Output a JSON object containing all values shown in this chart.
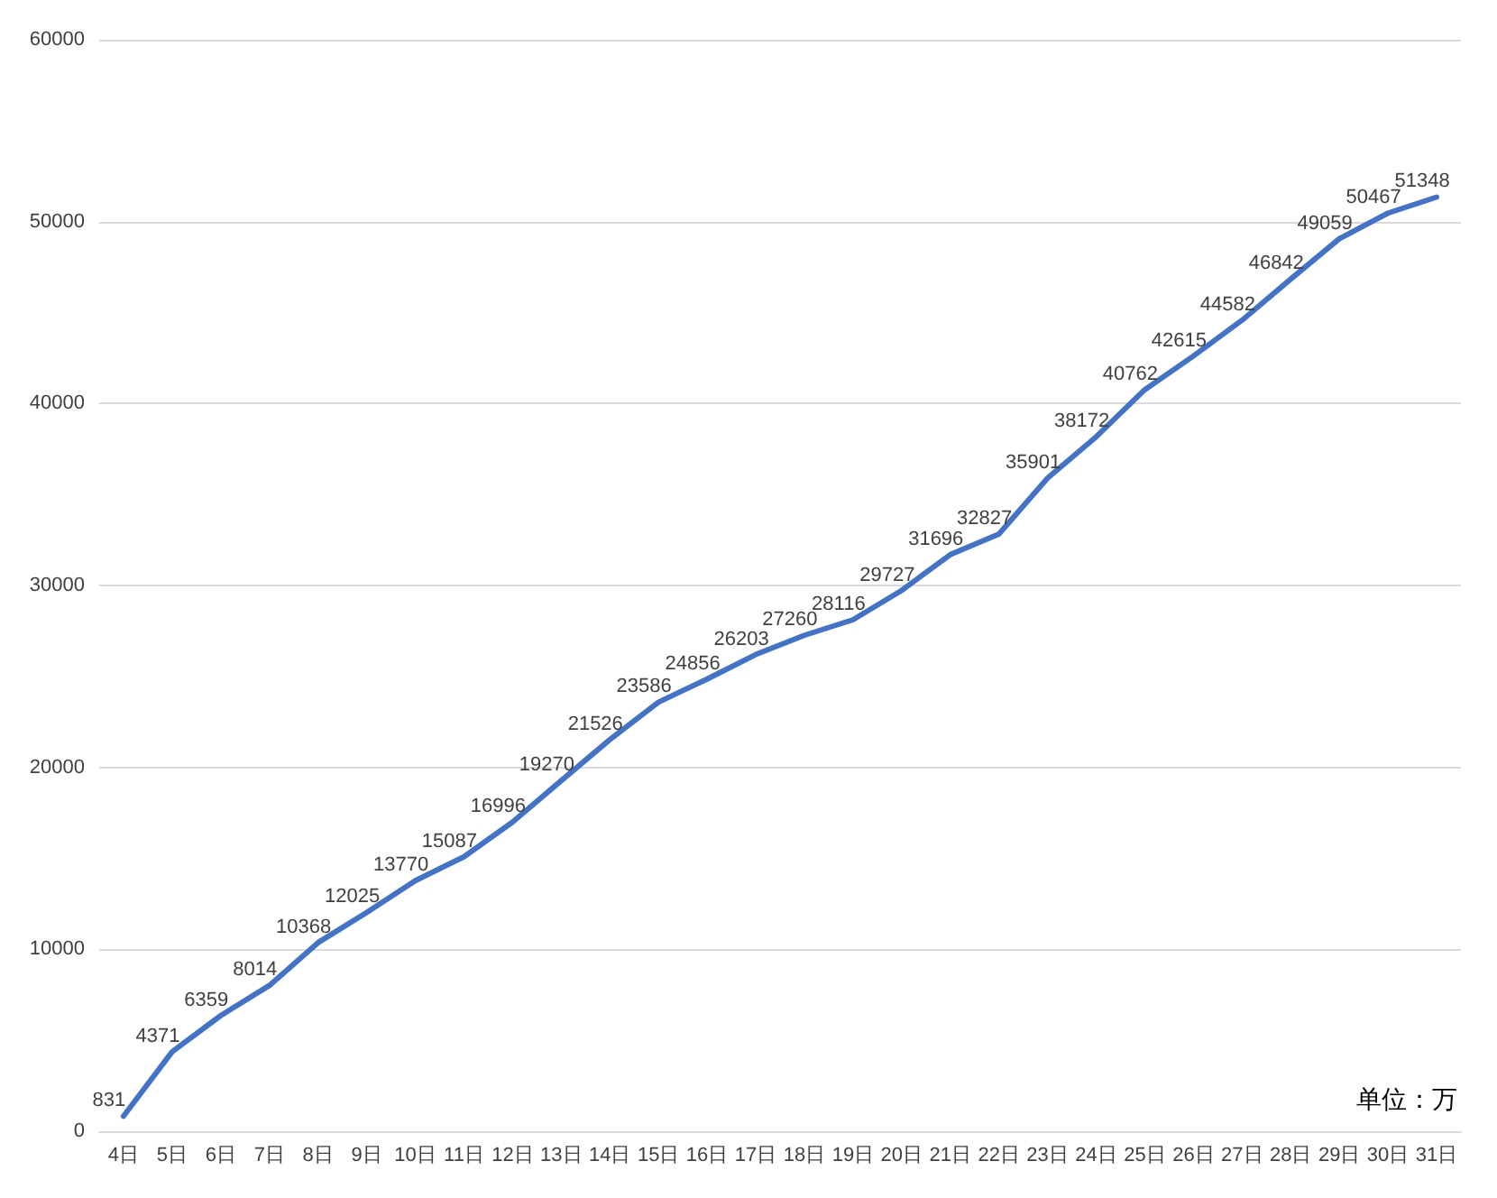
{
  "chart_data": {
    "type": "line",
    "categories": [
      "4日",
      "5日",
      "6日",
      "7日",
      "8日",
      "9日",
      "10日",
      "11日",
      "12日",
      "13日",
      "14日",
      "15日",
      "16日",
      "17日",
      "18日",
      "19日",
      "20日",
      "21日",
      "22日",
      "23日",
      "24日",
      "25日",
      "26日",
      "27日",
      "28日",
      "29日",
      "30日",
      "31日"
    ],
    "values": [
      831,
      4371,
      6359,
      8014,
      10368,
      12025,
      13770,
      15087,
      16996,
      19270,
      21526,
      23586,
      24856,
      26203,
      27260,
      28116,
      29727,
      31696,
      32827,
      35901,
      38172,
      40762,
      42615,
      44582,
      46842,
      49059,
      50467,
      51348
    ],
    "color": "#4472c4",
    "ylim": [
      0,
      60000
    ],
    "yticks": [
      0,
      10000,
      20000,
      30000,
      40000,
      50000,
      60000
    ],
    "grid": "y",
    "data_labels": true,
    "marker": "none",
    "line_style": "solid",
    "annotations": [
      "单位：万"
    ]
  }
}
